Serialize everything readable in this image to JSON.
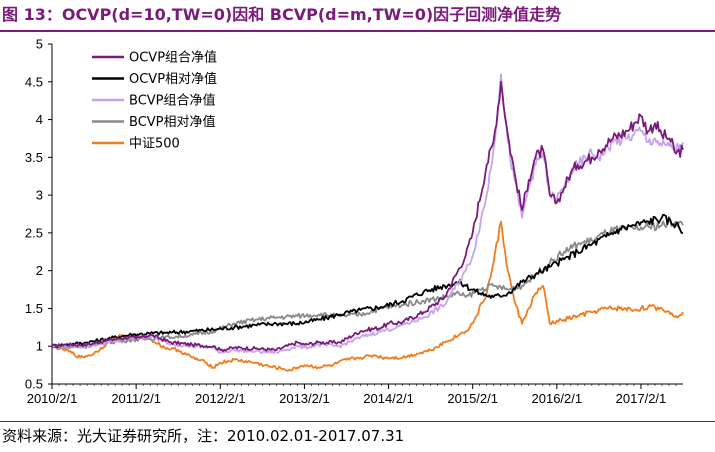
{
  "figure": {
    "title": "图 13：OCVP(d=10,TW=0)因和 BCVP(d=m,TW=0)因子回测净值走势",
    "source": "资料来源：光大证券研究所，注：2010.02.01-2017.07.31"
  },
  "chart_data": {
    "type": "line",
    "title": "",
    "xlabel": "",
    "ylabel": "",
    "ylim": [
      0.5,
      5
    ],
    "yticks": [
      "0.5",
      "1",
      "1.5",
      "2",
      "2.5",
      "3",
      "3.5",
      "4",
      "4.5",
      "5"
    ],
    "xlim": [
      2010.083,
      2017.583
    ],
    "xticks": [
      "2010/2/1",
      "2011/2/1",
      "2012/2/1",
      "2013/2/1",
      "2014/2/1",
      "2015/2/1",
      "2016/2/1",
      "2017/2/1"
    ],
    "grid": false,
    "legend_position": "top-left",
    "series": [
      {
        "name": "OCVP组合净值",
        "color": "#7a1a7a",
        "points": [
          [
            2010.083,
            1.0
          ],
          [
            2010.25,
            1.02
          ],
          [
            2010.5,
            1.02
          ],
          [
            2010.75,
            1.08
          ],
          [
            2011.0,
            1.12
          ],
          [
            2011.083,
            1.1
          ],
          [
            2011.25,
            1.15
          ],
          [
            2011.5,
            1.05
          ],
          [
            2011.75,
            1.02
          ],
          [
            2012.0,
            1.0
          ],
          [
            2012.083,
            0.95
          ],
          [
            2012.25,
            0.98
          ],
          [
            2012.5,
            0.97
          ],
          [
            2012.75,
            0.95
          ],
          [
            2013.0,
            1.05
          ],
          [
            2013.083,
            1.02
          ],
          [
            2013.25,
            1.05
          ],
          [
            2013.5,
            1.05
          ],
          [
            2013.75,
            1.2
          ],
          [
            2014.0,
            1.25
          ],
          [
            2014.083,
            1.3
          ],
          [
            2014.25,
            1.32
          ],
          [
            2014.5,
            1.45
          ],
          [
            2014.75,
            1.65
          ],
          [
            2015.0,
            2.2
          ],
          [
            2015.083,
            2.5
          ],
          [
            2015.25,
            3.4
          ],
          [
            2015.33,
            3.7
          ],
          [
            2015.42,
            4.5
          ],
          [
            2015.5,
            3.8
          ],
          [
            2015.58,
            3.3
          ],
          [
            2015.67,
            2.8
          ],
          [
            2015.75,
            3.2
          ],
          [
            2015.83,
            3.5
          ],
          [
            2015.92,
            3.6
          ],
          [
            2016.0,
            3.0
          ],
          [
            2016.083,
            2.9
          ],
          [
            2016.17,
            3.1
          ],
          [
            2016.25,
            3.3
          ],
          [
            2016.33,
            3.4
          ],
          [
            2016.5,
            3.5
          ],
          [
            2016.58,
            3.6
          ],
          [
            2016.75,
            3.75
          ],
          [
            2016.92,
            3.85
          ],
          [
            2017.0,
            3.95
          ],
          [
            2017.08,
            4.05
          ],
          [
            2017.17,
            3.85
          ],
          [
            2017.25,
            3.95
          ],
          [
            2017.33,
            3.8
          ],
          [
            2017.42,
            3.75
          ],
          [
            2017.5,
            3.55
          ],
          [
            2017.583,
            3.6
          ]
        ]
      },
      {
        "name": "OCVP相对净值",
        "color": "#000000",
        "points": [
          [
            2010.083,
            1.0
          ],
          [
            2010.25,
            1.02
          ],
          [
            2010.5,
            1.05
          ],
          [
            2010.75,
            1.1
          ],
          [
            2011.0,
            1.15
          ],
          [
            2011.25,
            1.17
          ],
          [
            2011.5,
            1.18
          ],
          [
            2011.75,
            1.2
          ],
          [
            2012.0,
            1.22
          ],
          [
            2012.25,
            1.25
          ],
          [
            2012.5,
            1.28
          ],
          [
            2012.75,
            1.3
          ],
          [
            2013.0,
            1.3
          ],
          [
            2013.25,
            1.35
          ],
          [
            2013.5,
            1.42
          ],
          [
            2013.75,
            1.48
          ],
          [
            2014.0,
            1.52
          ],
          [
            2014.25,
            1.6
          ],
          [
            2014.5,
            1.72
          ],
          [
            2014.75,
            1.8
          ],
          [
            2014.92,
            1.85
          ],
          [
            2015.0,
            1.8
          ],
          [
            2015.17,
            1.7
          ],
          [
            2015.33,
            1.65
          ],
          [
            2015.5,
            1.7
          ],
          [
            2015.67,
            1.85
          ],
          [
            2015.83,
            1.95
          ],
          [
            2016.0,
            2.05
          ],
          [
            2016.17,
            2.15
          ],
          [
            2016.33,
            2.25
          ],
          [
            2016.5,
            2.35
          ],
          [
            2016.67,
            2.45
          ],
          [
            2016.83,
            2.55
          ],
          [
            2017.0,
            2.6
          ],
          [
            2017.17,
            2.65
          ],
          [
            2017.33,
            2.7
          ],
          [
            2017.5,
            2.62
          ],
          [
            2017.583,
            2.5
          ]
        ]
      },
      {
        "name": "BCVP组合净值",
        "color": "#c5a3ef",
        "points": [
          [
            2010.083,
            1.0
          ],
          [
            2010.25,
            1.0
          ],
          [
            2010.5,
            1.0
          ],
          [
            2010.75,
            1.05
          ],
          [
            2011.0,
            1.1
          ],
          [
            2011.083,
            1.12
          ],
          [
            2011.25,
            1.13
          ],
          [
            2011.5,
            1.03
          ],
          [
            2011.75,
            1.0
          ],
          [
            2012.0,
            0.98
          ],
          [
            2012.083,
            0.92
          ],
          [
            2012.25,
            0.95
          ],
          [
            2012.5,
            0.93
          ],
          [
            2012.75,
            0.92
          ],
          [
            2013.0,
            1.0
          ],
          [
            2013.083,
            0.98
          ],
          [
            2013.25,
            1.02
          ],
          [
            2013.5,
            1.0
          ],
          [
            2013.75,
            1.12
          ],
          [
            2014.0,
            1.2
          ],
          [
            2014.083,
            1.22
          ],
          [
            2014.25,
            1.28
          ],
          [
            2014.5,
            1.38
          ],
          [
            2014.75,
            1.55
          ],
          [
            2015.0,
            2.0
          ],
          [
            2015.083,
            2.2
          ],
          [
            2015.25,
            3.0
          ],
          [
            2015.33,
            3.6
          ],
          [
            2015.42,
            4.6
          ],
          [
            2015.5,
            3.7
          ],
          [
            2015.58,
            3.2
          ],
          [
            2015.67,
            2.7
          ],
          [
            2015.75,
            3.1
          ],
          [
            2015.83,
            3.4
          ],
          [
            2015.92,
            3.55
          ],
          [
            2016.0,
            3.0
          ],
          [
            2016.083,
            2.95
          ],
          [
            2016.17,
            3.1
          ],
          [
            2016.25,
            3.3
          ],
          [
            2016.33,
            3.4
          ],
          [
            2016.5,
            3.55
          ],
          [
            2016.58,
            3.5
          ],
          [
            2016.75,
            3.7
          ],
          [
            2016.92,
            3.75
          ],
          [
            2017.0,
            3.8
          ],
          [
            2017.08,
            3.85
          ],
          [
            2017.17,
            3.7
          ],
          [
            2017.25,
            3.75
          ],
          [
            2017.33,
            3.65
          ],
          [
            2017.42,
            3.65
          ],
          [
            2017.5,
            3.6
          ],
          [
            2017.583,
            3.7
          ]
        ]
      },
      {
        "name": "BCVP相对净值",
        "color": "#8a8a8a",
        "points": [
          [
            2010.083,
            1.0
          ],
          [
            2010.25,
            0.98
          ],
          [
            2010.5,
            1.0
          ],
          [
            2010.75,
            1.05
          ],
          [
            2011.0,
            1.08
          ],
          [
            2011.25,
            1.1
          ],
          [
            2011.5,
            1.12
          ],
          [
            2011.75,
            1.15
          ],
          [
            2012.0,
            1.2
          ],
          [
            2012.25,
            1.3
          ],
          [
            2012.5,
            1.35
          ],
          [
            2012.75,
            1.38
          ],
          [
            2013.0,
            1.4
          ],
          [
            2013.25,
            1.42
          ],
          [
            2013.5,
            1.4
          ],
          [
            2013.75,
            1.42
          ],
          [
            2014.0,
            1.5
          ],
          [
            2014.25,
            1.55
          ],
          [
            2014.5,
            1.6
          ],
          [
            2014.75,
            1.65
          ],
          [
            2014.92,
            1.7
          ],
          [
            2015.0,
            1.65
          ],
          [
            2015.17,
            1.75
          ],
          [
            2015.33,
            1.8
          ],
          [
            2015.5,
            1.75
          ],
          [
            2015.67,
            1.8
          ],
          [
            2015.83,
            1.95
          ],
          [
            2016.0,
            2.1
          ],
          [
            2016.17,
            2.25
          ],
          [
            2016.33,
            2.35
          ],
          [
            2016.5,
            2.4
          ],
          [
            2016.67,
            2.5
          ],
          [
            2016.83,
            2.55
          ],
          [
            2017.0,
            2.55
          ],
          [
            2017.17,
            2.58
          ],
          [
            2017.33,
            2.6
          ],
          [
            2017.5,
            2.65
          ],
          [
            2017.583,
            2.6
          ]
        ]
      },
      {
        "name": "中证500",
        "color": "#f07c1e",
        "points": [
          [
            2010.083,
            1.0
          ],
          [
            2010.25,
            0.95
          ],
          [
            2010.42,
            0.85
          ],
          [
            2010.58,
            0.9
          ],
          [
            2010.75,
            1.05
          ],
          [
            2010.92,
            1.15
          ],
          [
            2011.0,
            1.1
          ],
          [
            2011.083,
            1.12
          ],
          [
            2011.25,
            1.1
          ],
          [
            2011.42,
            0.98
          ],
          [
            2011.58,
            0.95
          ],
          [
            2011.75,
            0.85
          ],
          [
            2011.92,
            0.78
          ],
          [
            2012.0,
            0.72
          ],
          [
            2012.083,
            0.78
          ],
          [
            2012.25,
            0.82
          ],
          [
            2012.5,
            0.78
          ],
          [
            2012.67,
            0.73
          ],
          [
            2012.83,
            0.7
          ],
          [
            2012.92,
            0.68
          ],
          [
            2013.0,
            0.72
          ],
          [
            2013.083,
            0.75
          ],
          [
            2013.25,
            0.72
          ],
          [
            2013.42,
            0.75
          ],
          [
            2013.58,
            0.82
          ],
          [
            2013.75,
            0.85
          ],
          [
            2013.92,
            0.88
          ],
          [
            2014.0,
            0.85
          ],
          [
            2014.25,
            0.85
          ],
          [
            2014.42,
            0.9
          ],
          [
            2014.58,
            0.95
          ],
          [
            2014.75,
            1.05
          ],
          [
            2014.92,
            1.15
          ],
          [
            2015.0,
            1.2
          ],
          [
            2015.083,
            1.3
          ],
          [
            2015.25,
            1.7
          ],
          [
            2015.33,
            2.1
          ],
          [
            2015.42,
            2.65
          ],
          [
            2015.5,
            2.0
          ],
          [
            2015.58,
            1.6
          ],
          [
            2015.67,
            1.3
          ],
          [
            2015.75,
            1.5
          ],
          [
            2015.83,
            1.7
          ],
          [
            2015.92,
            1.8
          ],
          [
            2016.0,
            1.3
          ],
          [
            2016.17,
            1.35
          ],
          [
            2016.33,
            1.4
          ],
          [
            2016.5,
            1.45
          ],
          [
            2016.67,
            1.5
          ],
          [
            2016.83,
            1.5
          ],
          [
            2017.0,
            1.48
          ],
          [
            2017.17,
            1.52
          ],
          [
            2017.33,
            1.5
          ],
          [
            2017.5,
            1.4
          ],
          [
            2017.583,
            1.45
          ]
        ]
      }
    ]
  }
}
